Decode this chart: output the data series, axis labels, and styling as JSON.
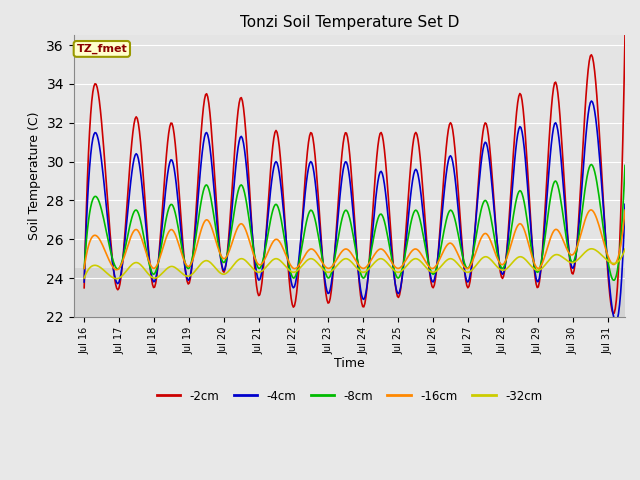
{
  "title": "Tonzi Soil Temperature Set D",
  "xlabel": "Time",
  "ylabel": "Soil Temperature (C)",
  "ylim": [
    22,
    36.5
  ],
  "yticks": [
    22,
    24,
    26,
    28,
    30,
    32,
    34,
    36
  ],
  "xlim": [
    -0.3,
    15.5
  ],
  "fig_bg": "#e8e8e8",
  "plot_bg": "#d4d4d4",
  "band_bg": "#e8e8e8",
  "legend_label": "TZ_fmet",
  "legend_fg": "#8b0000",
  "legend_bg": "#ffffcc",
  "legend_border": "#999900",
  "lines": [
    {
      "label": "-2cm",
      "color": "#cc0000",
      "lw": 1.2
    },
    {
      "label": "-4cm",
      "color": "#0000cc",
      "lw": 1.2
    },
    {
      "label": "-8cm",
      "color": "#00bb00",
      "lw": 1.2
    },
    {
      "label": "-16cm",
      "color": "#ff8800",
      "lw": 1.2
    },
    {
      "label": "-32cm",
      "color": "#cccc00",
      "lw": 1.2
    }
  ],
  "xtick_labels": [
    "Jul 16",
    "Jul 17",
    "Jul 18",
    "Jul 19",
    "Jul 20",
    "Jul 21",
    "Jul 22",
    "Jul 23",
    "Jul 24",
    "Jul 25",
    "Jul 26",
    "Jul 27",
    "Jul 28",
    "Jul 29",
    "Jul 30",
    "Jul 31"
  ],
  "xtick_positions": [
    0,
    1,
    2,
    3,
    4,
    5,
    6,
    7,
    8,
    9,
    10,
    11,
    12,
    13,
    14,
    15
  ]
}
